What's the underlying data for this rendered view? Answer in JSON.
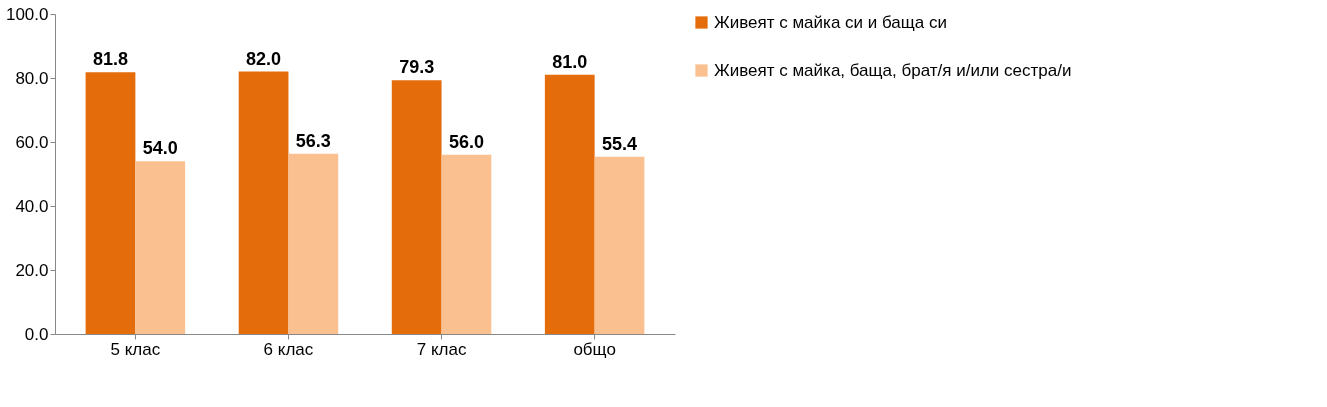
{
  "chart_data": {
    "type": "bar",
    "categories": [
      "5 клас",
      "6 клас",
      "7 клас",
      "общо"
    ],
    "series": [
      {
        "name": "Живеят с майка си и баща си",
        "color": "#e46c0a",
        "values": [
          81.8,
          82.0,
          79.3,
          81.0
        ],
        "value_labels": [
          "81.8",
          "82.0",
          "79.3",
          "81.0"
        ]
      },
      {
        "name": "Живеят с майка, баща,  брат/я  и/или сестра/и",
        "color": "#fac090",
        "values": [
          54.0,
          56.3,
          56.0,
          55.4
        ],
        "value_labels": [
          "54.0",
          "56.3",
          "56.0",
          "55.4"
        ]
      }
    ],
    "ylim": [
      0,
      100
    ],
    "yticks": [
      {
        "value": 0,
        "label": "0.0"
      },
      {
        "value": 20,
        "label": "20.0"
      },
      {
        "value": 40,
        "label": "40.0"
      },
      {
        "value": 60,
        "label": "60.0"
      },
      {
        "value": 80,
        "label": "80.0"
      },
      {
        "value": 100,
        "label": "100.0"
      }
    ],
    "grid": false,
    "legend": "right"
  }
}
